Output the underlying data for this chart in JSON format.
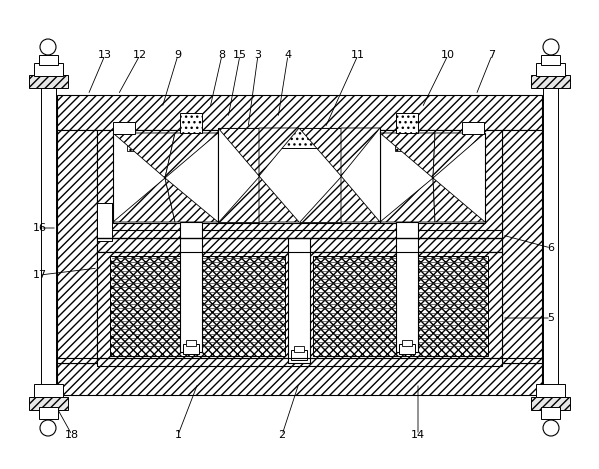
{
  "figure_width": 5.99,
  "figure_height": 4.69,
  "dpi": 100,
  "bg_color": "#ffffff",
  "line_color": "#000000",
  "annotations": [
    [
      "13",
      105,
      55,
      88,
      95
    ],
    [
      "12",
      140,
      55,
      118,
      95
    ],
    [
      "9",
      178,
      55,
      162,
      108
    ],
    [
      "8",
      222,
      55,
      210,
      108
    ],
    [
      "15",
      240,
      55,
      228,
      118
    ],
    [
      "3",
      258,
      55,
      248,
      128
    ],
    [
      "4",
      288,
      55,
      278,
      118
    ],
    [
      "11",
      358,
      55,
      325,
      128
    ],
    [
      "10",
      448,
      55,
      422,
      108
    ],
    [
      "7",
      492,
      55,
      476,
      95
    ],
    [
      "5",
      551,
      318,
      502,
      318
    ],
    [
      "6",
      551,
      248,
      502,
      235
    ],
    [
      "16",
      40,
      228,
      57,
      228
    ],
    [
      "17",
      40,
      275,
      98,
      268
    ],
    [
      "18",
      72,
      435,
      57,
      408
    ],
    [
      "1",
      178,
      435,
      198,
      383
    ],
    [
      "2",
      282,
      435,
      299,
      383
    ],
    [
      "14",
      418,
      435,
      418,
      383
    ]
  ]
}
